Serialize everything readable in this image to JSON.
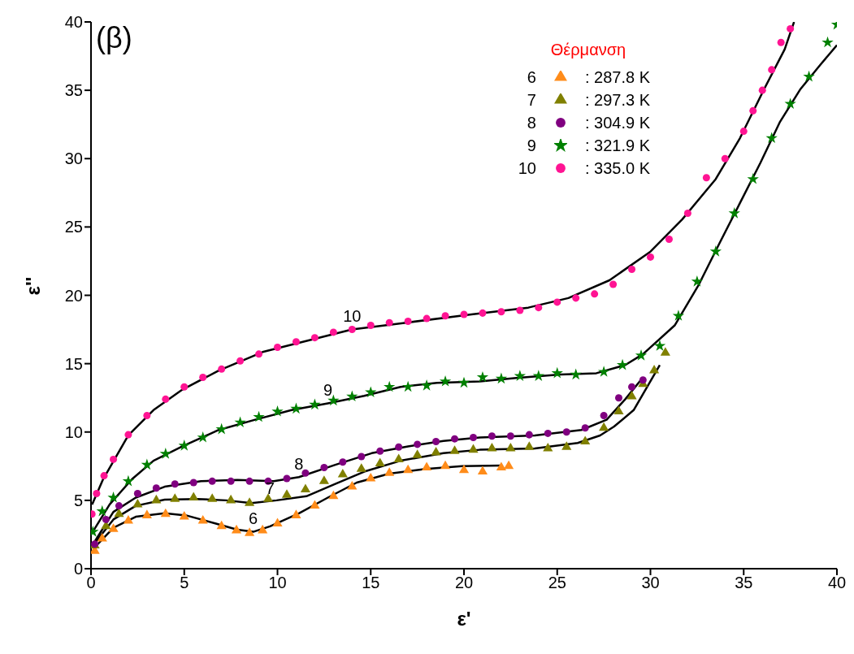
{
  "chart_data": {
    "type": "scatter",
    "xlabel": "ε'",
    "ylabel": "ε''",
    "legend_title": "Θέρμανση",
    "legend": "top right",
    "xlim": [
      0,
      40
    ],
    "ylim": [
      0,
      40
    ],
    "xticks": [
      0,
      5,
      10,
      15,
      20,
      25,
      30,
      35,
      40
    ],
    "yticks": [
      0,
      5,
      10,
      15,
      20,
      25,
      30,
      35,
      40
    ],
    "grid": false,
    "annotations": [
      "(β)",
      {
        "text": "10",
        "x": 14.0,
        "y": 17.5
      },
      {
        "text": "9",
        "x": 12.7,
        "y": 12.1
      },
      {
        "text": "8",
        "x": 11.15,
        "y": 6.7
      },
      {
        "text": "7",
        "x": 9.6,
        "y": 4.9
      },
      {
        "text": "6",
        "x": 8.7,
        "y": 2.7
      },
      "6",
      "7",
      "8",
      "9",
      "10"
    ],
    "series": [
      {
        "name": ": 287.8 K",
        "marker": "triangle",
        "color": "#ff8c1a",
        "x": [
          0.2,
          0.6,
          1.2,
          2.0,
          3.0,
          4.0,
          5.0,
          6.0,
          7.0,
          7.8,
          8.5,
          9.2,
          10.0,
          11.0,
          12.0,
          13.0,
          14.0,
          15.0,
          16.0,
          17.0,
          18.0,
          19.0,
          20.0,
          21.0,
          22.0,
          22.4
        ],
        "values": [
          1.3,
          2.2,
          2.9,
          3.5,
          3.9,
          4.0,
          3.8,
          3.5,
          3.1,
          2.8,
          2.6,
          2.8,
          3.3,
          3.9,
          4.6,
          5.3,
          6.0,
          6.6,
          7.0,
          7.2,
          7.4,
          7.5,
          7.2,
          7.1,
          7.4,
          7.5
        ]
      },
      {
        "name": ": 297.3 K",
        "marker": "triangle",
        "color": "#808000",
        "x": [
          0.2,
          0.8,
          1.5,
          2.5,
          3.5,
          4.5,
          5.5,
          6.5,
          7.5,
          8.5,
          9.5,
          10.5,
          11.5,
          12.5,
          13.5,
          14.5,
          15.5,
          16.5,
          17.5,
          18.5,
          19.5,
          20.5,
          21.5,
          22.5,
          23.5,
          24.5,
          25.5,
          26.5,
          27.5,
          28.3,
          29.0,
          29.6,
          30.2,
          30.8
        ],
        "values": [
          1.7,
          3.1,
          4.0,
          4.7,
          5.0,
          5.1,
          5.2,
          5.1,
          5.0,
          4.8,
          5.1,
          5.4,
          5.8,
          6.4,
          6.9,
          7.3,
          7.7,
          8.0,
          8.3,
          8.5,
          8.6,
          8.7,
          8.8,
          8.8,
          8.9,
          8.8,
          8.9,
          9.3,
          10.3,
          11.5,
          12.6,
          13.5,
          14.5,
          15.8
        ]
      },
      {
        "name": ": 304.9 K",
        "marker": "circle",
        "color": "#800080",
        "x": [
          0.2,
          0.8,
          1.5,
          2.5,
          3.5,
          4.5,
          5.5,
          6.5,
          7.5,
          8.5,
          9.5,
          10.5,
          11.5,
          12.5,
          13.5,
          14.5,
          15.5,
          16.5,
          17.5,
          18.5,
          19.5,
          20.5,
          21.5,
          22.5,
          23.5,
          24.5,
          25.5,
          26.5,
          27.5,
          28.3,
          29.0,
          29.6
        ],
        "values": [
          1.8,
          3.6,
          4.6,
          5.5,
          5.9,
          6.2,
          6.3,
          6.4,
          6.4,
          6.4,
          6.4,
          6.6,
          7.0,
          7.4,
          7.8,
          8.2,
          8.6,
          8.9,
          9.1,
          9.3,
          9.5,
          9.6,
          9.7,
          9.7,
          9.8,
          9.9,
          10.0,
          10.3,
          11.2,
          12.5,
          13.3,
          13.8
        ]
      },
      {
        "name": ": 321.9 K",
        "marker": "star",
        "color": "#008000",
        "x": [
          0.1,
          0.6,
          1.2,
          2.0,
          3.0,
          4.0,
          5.0,
          6.0,
          7.0,
          8.0,
          9.0,
          10.0,
          11.0,
          12.0,
          13.0,
          14.0,
          15.0,
          16.0,
          17.0,
          18.0,
          19.0,
          20.0,
          21.0,
          22.0,
          23.0,
          24.0,
          25.0,
          26.0,
          27.5,
          28.5,
          29.5,
          30.5,
          31.5,
          32.5,
          33.5,
          34.5,
          35.5,
          36.5,
          37.5,
          38.5,
          39.5,
          40.0
        ],
        "values": [
          2.7,
          4.2,
          5.2,
          6.4,
          7.6,
          8.4,
          9.0,
          9.6,
          10.2,
          10.7,
          11.1,
          11.5,
          11.7,
          12.0,
          12.3,
          12.6,
          12.9,
          13.3,
          13.3,
          13.4,
          13.7,
          13.6,
          14.0,
          13.9,
          14.1,
          14.1,
          14.3,
          14.2,
          14.4,
          14.9,
          15.6,
          16.3,
          18.5,
          21.0,
          23.2,
          26.0,
          28.5,
          31.5,
          34.0,
          36.0,
          38.5,
          39.8
        ]
      },
      {
        "name": ": 335.0 K",
        "marker": "circle",
        "color": "#ff1493",
        "x": [
          0.05,
          0.3,
          0.7,
          1.2,
          2.0,
          3.0,
          4.0,
          5.0,
          6.0,
          7.0,
          8.0,
          9.0,
          10.0,
          11.0,
          12.0,
          13.0,
          14.0,
          15.0,
          16.0,
          17.0,
          18.0,
          19.0,
          20.0,
          21.0,
          22.0,
          23.0,
          24.0,
          25.0,
          26.0,
          27.0,
          28.0,
          29.0,
          30.0,
          31.0,
          32.0,
          33.0,
          34.0,
          35.0,
          35.5,
          36.0,
          36.5,
          37.0,
          37.5
        ],
        "values": [
          4.0,
          5.5,
          6.8,
          8.0,
          9.8,
          11.2,
          12.4,
          13.3,
          14.0,
          14.6,
          15.2,
          15.7,
          16.2,
          16.6,
          16.9,
          17.3,
          17.5,
          17.8,
          18.0,
          18.1,
          18.3,
          18.5,
          18.6,
          18.7,
          18.8,
          18.9,
          19.1,
          19.5,
          19.8,
          20.1,
          20.8,
          21.9,
          22.8,
          24.1,
          26.0,
          28.6,
          30.0,
          32.0,
          33.5,
          35.0,
          36.5,
          38.5,
          39.5
        ]
      },
      {
        "type": "line",
        "marker": "none",
        "line_style": "solid",
        "color": "#000000",
        "x": [
          0.16,
          1.2,
          2.4,
          3.95,
          5.1,
          6.7,
          7.85,
          8.7,
          9.6,
          11.15,
          12.7,
          14.25,
          16.0,
          17.95,
          19.9,
          22.05
        ],
        "values": [
          1.5,
          3.0,
          3.8,
          4.05,
          3.9,
          3.3,
          2.85,
          2.7,
          3.1,
          4.05,
          5.2,
          6.3,
          6.95,
          7.3,
          7.5,
          7.55
        ]
      },
      {
        "type": "line",
        "marker": "none",
        "line_style": "solid",
        "color": "#000000",
        "x": [
          0.16,
          1.2,
          2.4,
          3.95,
          5.7,
          7.25,
          8.6,
          9.95,
          11.55,
          13.1,
          14.65,
          16.6,
          18.9,
          20.85,
          23.8,
          26.1,
          27.3,
          28.05,
          29.1,
          30.5
        ],
        "values": [
          1.8,
          3.6,
          4.6,
          5.05,
          5.1,
          5.0,
          4.8,
          5.0,
          5.3,
          6.2,
          7.1,
          7.9,
          8.45,
          8.7,
          8.8,
          9.2,
          9.75,
          10.4,
          11.6,
          14.9
        ]
      },
      {
        "type": "line",
        "marker": "none",
        "line_style": "solid",
        "color": "#000000",
        "x": [
          0.16,
          1.2,
          2.4,
          3.95,
          5.9,
          7.85,
          9.8,
          11.15,
          13.1,
          15.05,
          17.0,
          18.9,
          20.85,
          23.8,
          26.3,
          27.65,
          28.65,
          29.6
        ],
        "values": [
          1.9,
          4.15,
          5.2,
          6.0,
          6.4,
          6.5,
          6.4,
          6.7,
          7.6,
          8.45,
          8.95,
          9.35,
          9.6,
          9.75,
          10.15,
          10.9,
          12.4,
          14.0
        ]
      },
      {
        "type": "line",
        "marker": "none",
        "line_style": "solid",
        "color": "#000000",
        "x": [
          0.16,
          1.0,
          2.2,
          3.35,
          4.9,
          6.85,
          8.8,
          10.75,
          12.7,
          14.65,
          16.6,
          18.55,
          20.85,
          22.8,
          25.15,
          27.1,
          28.65,
          29.6,
          31.3,
          32.6,
          33.7,
          34.8,
          35.9,
          36.95,
          38.05,
          39.1,
          40.0
        ],
        "values": [
          2.85,
          4.7,
          6.55,
          7.9,
          8.95,
          10.15,
          10.9,
          11.6,
          12.1,
          12.65,
          13.3,
          13.6,
          13.7,
          13.95,
          14.2,
          14.3,
          14.9,
          15.7,
          17.8,
          20.8,
          23.8,
          26.75,
          29.7,
          32.7,
          35.1,
          36.85,
          38.3
        ]
      },
      {
        "type": "line",
        "marker": "none",
        "line_style": "solid",
        "color": "#000000",
        "x": [
          0.06,
          0.65,
          2.0,
          3.35,
          4.9,
          6.85,
          9.2,
          14.0,
          16.9,
          20.4,
          23.45,
          25.6,
          27.8,
          30.0,
          31.7,
          33.5,
          34.8,
          36.1,
          37.2,
          37.7
        ],
        "values": [
          4.7,
          6.55,
          9.75,
          11.6,
          13.1,
          14.5,
          15.85,
          17.5,
          18.0,
          18.6,
          19.1,
          19.8,
          21.1,
          23.2,
          25.55,
          28.5,
          31.5,
          35.1,
          38.0,
          40.0
        ]
      }
    ]
  }
}
